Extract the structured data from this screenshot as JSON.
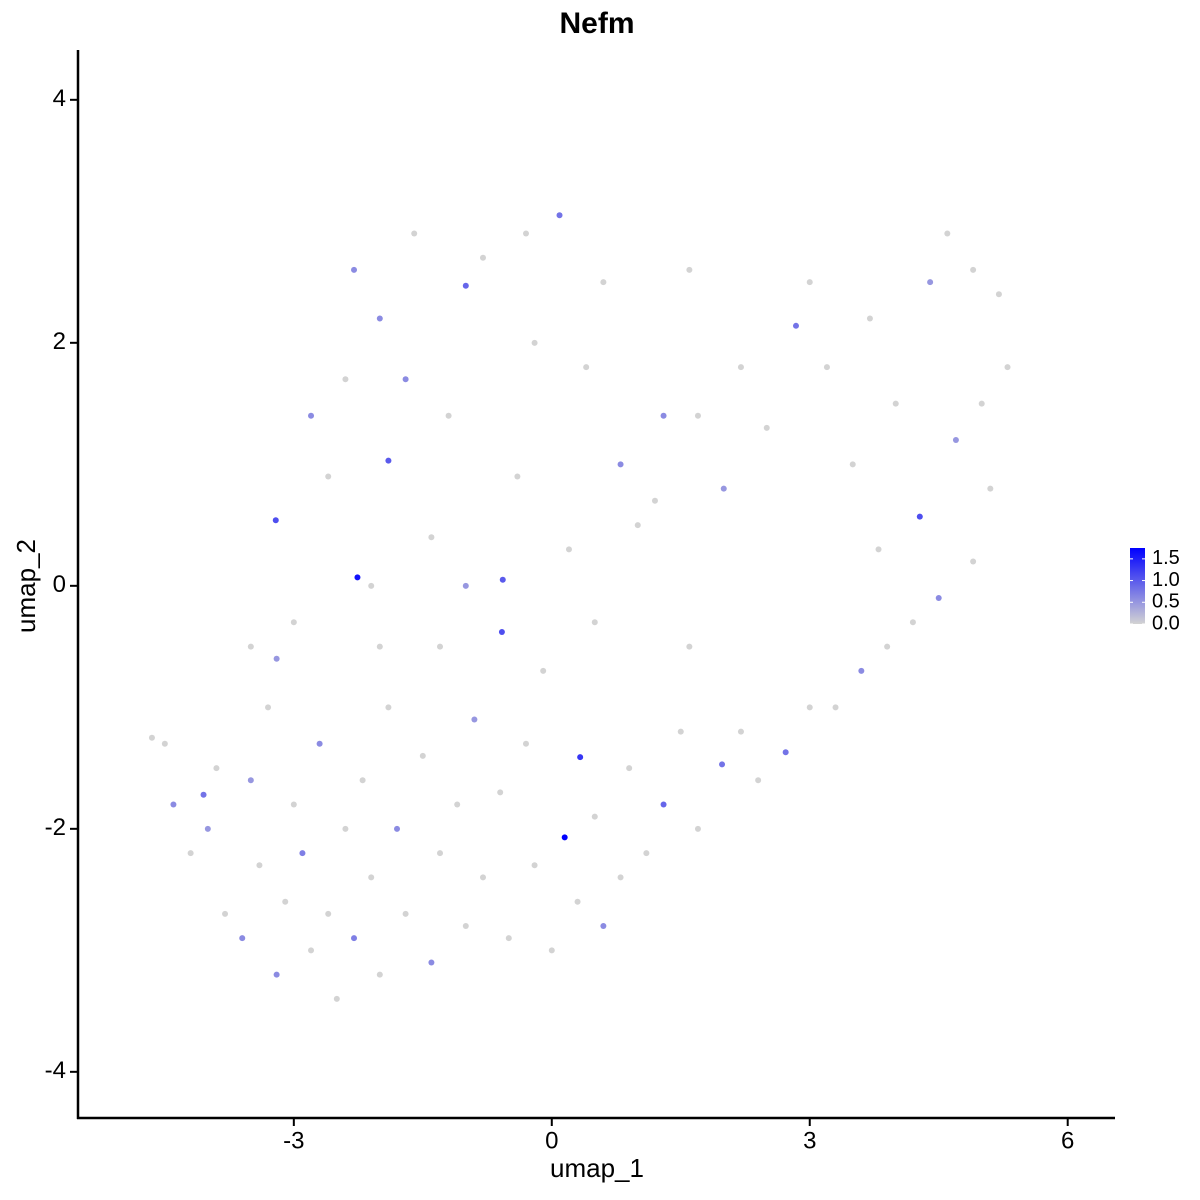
{
  "chart_data": {
    "type": "scatter",
    "title": "Nefm",
    "x_label": "umap_1",
    "y_label": "umap_2",
    "x": [
      -4.65,
      -4.5,
      -4.4,
      -4.2,
      -4.0,
      -3.9,
      -3.8,
      -3.6,
      -3.5,
      -3.4,
      -3.3,
      -3.2,
      -3.1,
      -3.0,
      -2.9,
      -2.8,
      -2.7,
      -2.6,
      -2.5,
      -2.4,
      -2.3,
      -2.2,
      -2.1,
      -2.0,
      -1.9,
      -1.8,
      -1.7,
      -1.5,
      -1.4,
      -1.3,
      -1.1,
      -1.0,
      -0.9,
      -0.8,
      -0.6,
      -0.5,
      -0.3,
      -0.2,
      0.0,
      0.15,
      0.33,
      0.3,
      0.5,
      0.6,
      0.8,
      0.9,
      1.1,
      1.3,
      1.5,
      1.7,
      1.98,
      2.2,
      2.4,
      2.72,
      3.0,
      3.3,
      3.6,
      3.9,
      4.2,
      4.5,
      4.9,
      5.1,
      5.3,
      5.2,
      4.9,
      4.6,
      4.4,
      4.28,
      4.0,
      3.7,
      3.5,
      3.2,
      2.84,
      2.5,
      2.2,
      2.0,
      1.7,
      1.3,
      1.0,
      0.8,
      0.6,
      0.4,
      0.2,
      0.09,
      -0.2,
      -0.4,
      -0.57,
      -0.58,
      -0.8,
      -1.0,
      -1.2,
      -1.4,
      -1.6,
      -1.7,
      -1.9,
      -2.0,
      -2.1,
      -2.26,
      -2.4,
      -2.6,
      -2.8,
      -3.0,
      -3.21,
      -3.5,
      -3.2,
      -0.1,
      1.2,
      0.5,
      1.6,
      -1.3,
      -4.05,
      -2.0,
      -1.0,
      3.8,
      4.7,
      5.0,
      3.0,
      1.6,
      -0.3,
      -2.3
    ],
    "y": [
      -1.25,
      -1.3,
      -1.8,
      -2.2,
      -2.0,
      -1.5,
      -2.7,
      -2.9,
      -1.6,
      -2.3,
      -1.0,
      -3.2,
      -2.6,
      -1.8,
      -2.2,
      -3.0,
      -1.3,
      -2.7,
      -3.4,
      -2.0,
      -2.9,
      -1.6,
      -2.4,
      -3.2,
      -1.0,
      -2.0,
      -2.7,
      -1.4,
      -3.1,
      -2.2,
      -1.8,
      -2.8,
      -1.1,
      -2.4,
      -1.7,
      -2.9,
      -1.3,
      -2.3,
      -3.0,
      -2.07,
      -1.41,
      -2.6,
      -1.9,
      -2.8,
      -2.4,
      -1.5,
      -2.2,
      -1.8,
      -1.2,
      -2.0,
      -1.47,
      -1.2,
      -1.6,
      -1.37,
      -1.0,
      -1.0,
      -0.7,
      -0.5,
      -0.3,
      -0.1,
      0.2,
      0.8,
      1.8,
      2.4,
      2.6,
      2.9,
      2.5,
      0.57,
      1.5,
      2.2,
      1.0,
      1.8,
      2.14,
      1.3,
      1.8,
      0.8,
      1.4,
      1.4,
      0.5,
      1.0,
      2.5,
      1.8,
      0.3,
      3.05,
      2.0,
      0.9,
      0.05,
      -0.38,
      2.7,
      2.47,
      1.4,
      0.4,
      2.9,
      1.7,
      1.03,
      2.2,
      0.0,
      0.07,
      1.7,
      0.9,
      1.4,
      -0.3,
      0.54,
      -0.5,
      -0.6,
      -0.7,
      0.7,
      -0.3,
      -0.5,
      -0.5,
      -1.72,
      -0.5,
      0.0,
      0.3,
      1.2,
      1.5,
      2.5,
      2.6,
      2.9,
      2.6
    ],
    "values": [
      0,
      0,
      0.6,
      0,
      0.5,
      0,
      0,
      0.6,
      0.5,
      0,
      0,
      0.6,
      0,
      0,
      0.7,
      0,
      0.6,
      0,
      0,
      0,
      0.7,
      0,
      0,
      0,
      0,
      0.6,
      0,
      0,
      0.6,
      0,
      0,
      0,
      0.5,
      0,
      0,
      0,
      0,
      0,
      0,
      1.75,
      1.3,
      0,
      0,
      0.6,
      0,
      0,
      0,
      0.9,
      0,
      0,
      0.8,
      0,
      0,
      0.8,
      0,
      0,
      0.6,
      0,
      0,
      0.6,
      0,
      0,
      0,
      0,
      0,
      0,
      0.5,
      1.1,
      0,
      0,
      0,
      0,
      0.8,
      0,
      0,
      0.5,
      0,
      0.6,
      0,
      0.6,
      0,
      0,
      0,
      0.8,
      0,
      0,
      1.0,
      1.1,
      0,
      0.9,
      0,
      0,
      0,
      0.6,
      1.0,
      0.6,
      0,
      1.6,
      0,
      0,
      0.6,
      0,
      1.1,
      0,
      0.5,
      0,
      0,
      0,
      0,
      0,
      0.8,
      0,
      0.5,
      0,
      0.5,
      0,
      0,
      0,
      0,
      0.6
    ],
    "xlim": [
      -5.51,
      6.55
    ],
    "xticks": [
      -3,
      0,
      3,
      6
    ],
    "ylim": [
      -4.38,
      4.41
    ],
    "yticks": [
      -4,
      -2,
      0,
      2,
      4
    ],
    "color_low": "#d3d3d3",
    "color_high": "#0000ff",
    "color_lim": [
      0,
      1.75
    ],
    "color_ticks": [
      {
        "value": 0,
        "label": "0.0"
      },
      0.5,
      {
        "value": 1,
        "label": "1.0"
      },
      1.5
    ]
  }
}
